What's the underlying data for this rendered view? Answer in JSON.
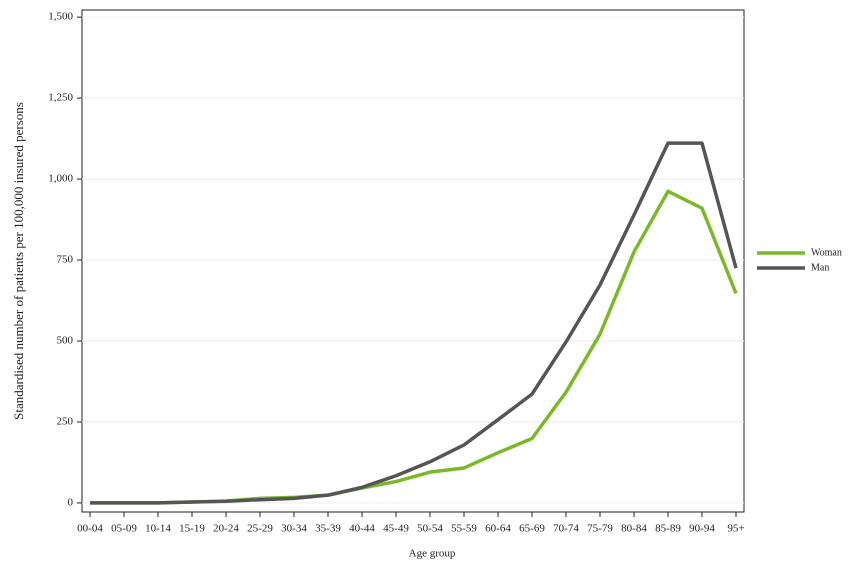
{
  "chart_data": {
    "type": "line",
    "x_label": "Age group",
    "y_label": "Standardised number of patients per 100,000 insured persons",
    "categories": [
      "00-04",
      "05-09",
      "10-14",
      "15-19",
      "20-24",
      "25-29",
      "30-34",
      "35-39",
      "40-44",
      "45-49",
      "50-54",
      "55-59",
      "60-64",
      "65-69",
      "70-74",
      "75-79",
      "80-84",
      "85-89",
      "90-94",
      "95+"
    ],
    "series": [
      {
        "name": "Woman",
        "color": "#7cb82a",
        "values": [
          0,
          0,
          0,
          3,
          6,
          14,
          17,
          24,
          46,
          66,
          95,
          108,
          155,
          199,
          342,
          521,
          775,
          962,
          910,
          647
        ]
      },
      {
        "name": "Man",
        "color": "#555555",
        "values": [
          0,
          0,
          0,
          3,
          5,
          10,
          14,
          24,
          48,
          84,
          127,
          179,
          257,
          336,
          497,
          673,
          889,
          1111,
          1111,
          725
        ]
      }
    ],
    "ylim": [
      -28,
      1522
    ],
    "yticks": [
      0,
      250,
      500,
      750,
      {
        "value": 1000,
        "label": "1,000"
      },
      {
        "value": 1250,
        "label": "1,250"
      },
      {
        "value": 1500,
        "label": "1,500"
      }
    ],
    "grid": true,
    "legend": "right"
  }
}
